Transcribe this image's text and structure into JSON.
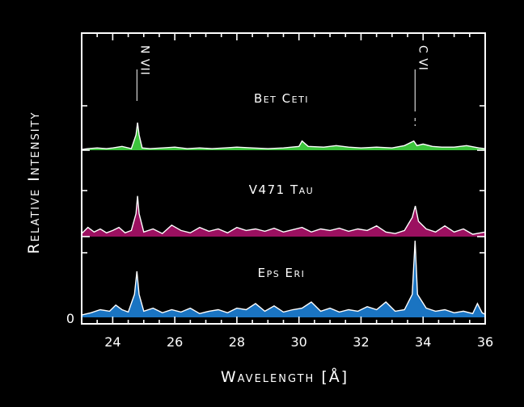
{
  "chart_data": {
    "type": "area",
    "title": "",
    "xlabel": "Wavelength [Å]",
    "ylabel": "Relative Intensity",
    "xlim": [
      23,
      36
    ],
    "x_ticks": [
      "24",
      "26",
      "28",
      "30",
      "32",
      "34",
      "36"
    ],
    "y_zero_label": "0",
    "line_ids": [
      "N VII",
      "C VI"
    ],
    "line_positions": [
      24.78,
      33.74
    ],
    "series": [
      {
        "name": "Bet Ceti",
        "color": "#3cc43c",
        "x": [
          23.0,
          23.2,
          23.5,
          23.8,
          24.0,
          24.3,
          24.6,
          24.75,
          24.8,
          24.85,
          24.95,
          25.2,
          25.6,
          26.0,
          26.4,
          26.8,
          27.2,
          27.6,
          28.0,
          28.5,
          29.0,
          29.5,
          30.0,
          30.1,
          30.3,
          30.8,
          31.2,
          31.6,
          32.0,
          32.5,
          33.0,
          33.4,
          33.7,
          33.8,
          34.0,
          34.3,
          34.6,
          35.0,
          35.4,
          35.8,
          36.0
        ],
        "values": [
          0.01,
          0.02,
          0.03,
          0.02,
          0.03,
          0.05,
          0.02,
          0.2,
          0.36,
          0.2,
          0.03,
          0.02,
          0.03,
          0.04,
          0.02,
          0.03,
          0.02,
          0.03,
          0.04,
          0.03,
          0.02,
          0.03,
          0.05,
          0.12,
          0.05,
          0.04,
          0.06,
          0.04,
          0.03,
          0.04,
          0.03,
          0.06,
          0.12,
          0.06,
          0.08,
          0.05,
          0.04,
          0.04,
          0.06,
          0.03,
          0.02
        ]
      },
      {
        "name": "V471 Tau",
        "color": "#9b1060",
        "x": [
          23.0,
          23.2,
          23.4,
          23.6,
          23.8,
          24.0,
          24.2,
          24.4,
          24.6,
          24.75,
          24.8,
          24.85,
          25.0,
          25.3,
          25.6,
          25.9,
          26.2,
          26.5,
          26.8,
          27.1,
          27.4,
          27.7,
          28.0,
          28.3,
          28.6,
          28.9,
          29.2,
          29.5,
          29.8,
          30.1,
          30.4,
          30.7,
          31.0,
          31.3,
          31.6,
          31.9,
          32.2,
          32.5,
          32.8,
          33.1,
          33.4,
          33.65,
          33.75,
          33.85,
          34.1,
          34.4,
          34.7,
          35.0,
          35.3,
          35.6,
          36.0
        ],
        "values": [
          0.04,
          0.12,
          0.06,
          0.1,
          0.05,
          0.08,
          0.12,
          0.05,
          0.08,
          0.3,
          0.53,
          0.3,
          0.06,
          0.1,
          0.04,
          0.15,
          0.08,
          0.05,
          0.12,
          0.07,
          0.1,
          0.05,
          0.12,
          0.08,
          0.1,
          0.07,
          0.11,
          0.06,
          0.09,
          0.12,
          0.06,
          0.1,
          0.08,
          0.11,
          0.07,
          0.1,
          0.08,
          0.14,
          0.06,
          0.04,
          0.08,
          0.25,
          0.4,
          0.2,
          0.1,
          0.06,
          0.14,
          0.06,
          0.1,
          0.03,
          0.06
        ]
      },
      {
        "name": "Eps Eri",
        "color": "#1a74c2",
        "x": [
          23.0,
          23.3,
          23.6,
          23.9,
          24.1,
          24.3,
          24.5,
          24.7,
          24.78,
          24.85,
          25.0,
          25.3,
          25.6,
          25.9,
          26.2,
          26.5,
          26.8,
          27.1,
          27.4,
          27.7,
          28.0,
          28.3,
          28.6,
          28.9,
          29.2,
          29.5,
          29.8,
          30.1,
          30.4,
          30.7,
          31.0,
          31.3,
          31.6,
          31.9,
          32.2,
          32.5,
          32.8,
          33.1,
          33.4,
          33.65,
          33.74,
          33.82,
          34.1,
          34.4,
          34.7,
          35.0,
          35.3,
          35.6,
          35.75,
          35.9,
          36.0
        ],
        "values": [
          0.03,
          0.06,
          0.1,
          0.08,
          0.16,
          0.1,
          0.07,
          0.3,
          0.6,
          0.3,
          0.08,
          0.12,
          0.06,
          0.1,
          0.07,
          0.12,
          0.05,
          0.08,
          0.1,
          0.06,
          0.12,
          0.1,
          0.18,
          0.08,
          0.15,
          0.07,
          0.1,
          0.12,
          0.2,
          0.08,
          0.12,
          0.07,
          0.1,
          0.08,
          0.14,
          0.1,
          0.2,
          0.08,
          0.1,
          0.3,
          1.0,
          0.3,
          0.12,
          0.08,
          0.1,
          0.06,
          0.08,
          0.05,
          0.18,
          0.06,
          0.04
        ]
      }
    ]
  }
}
